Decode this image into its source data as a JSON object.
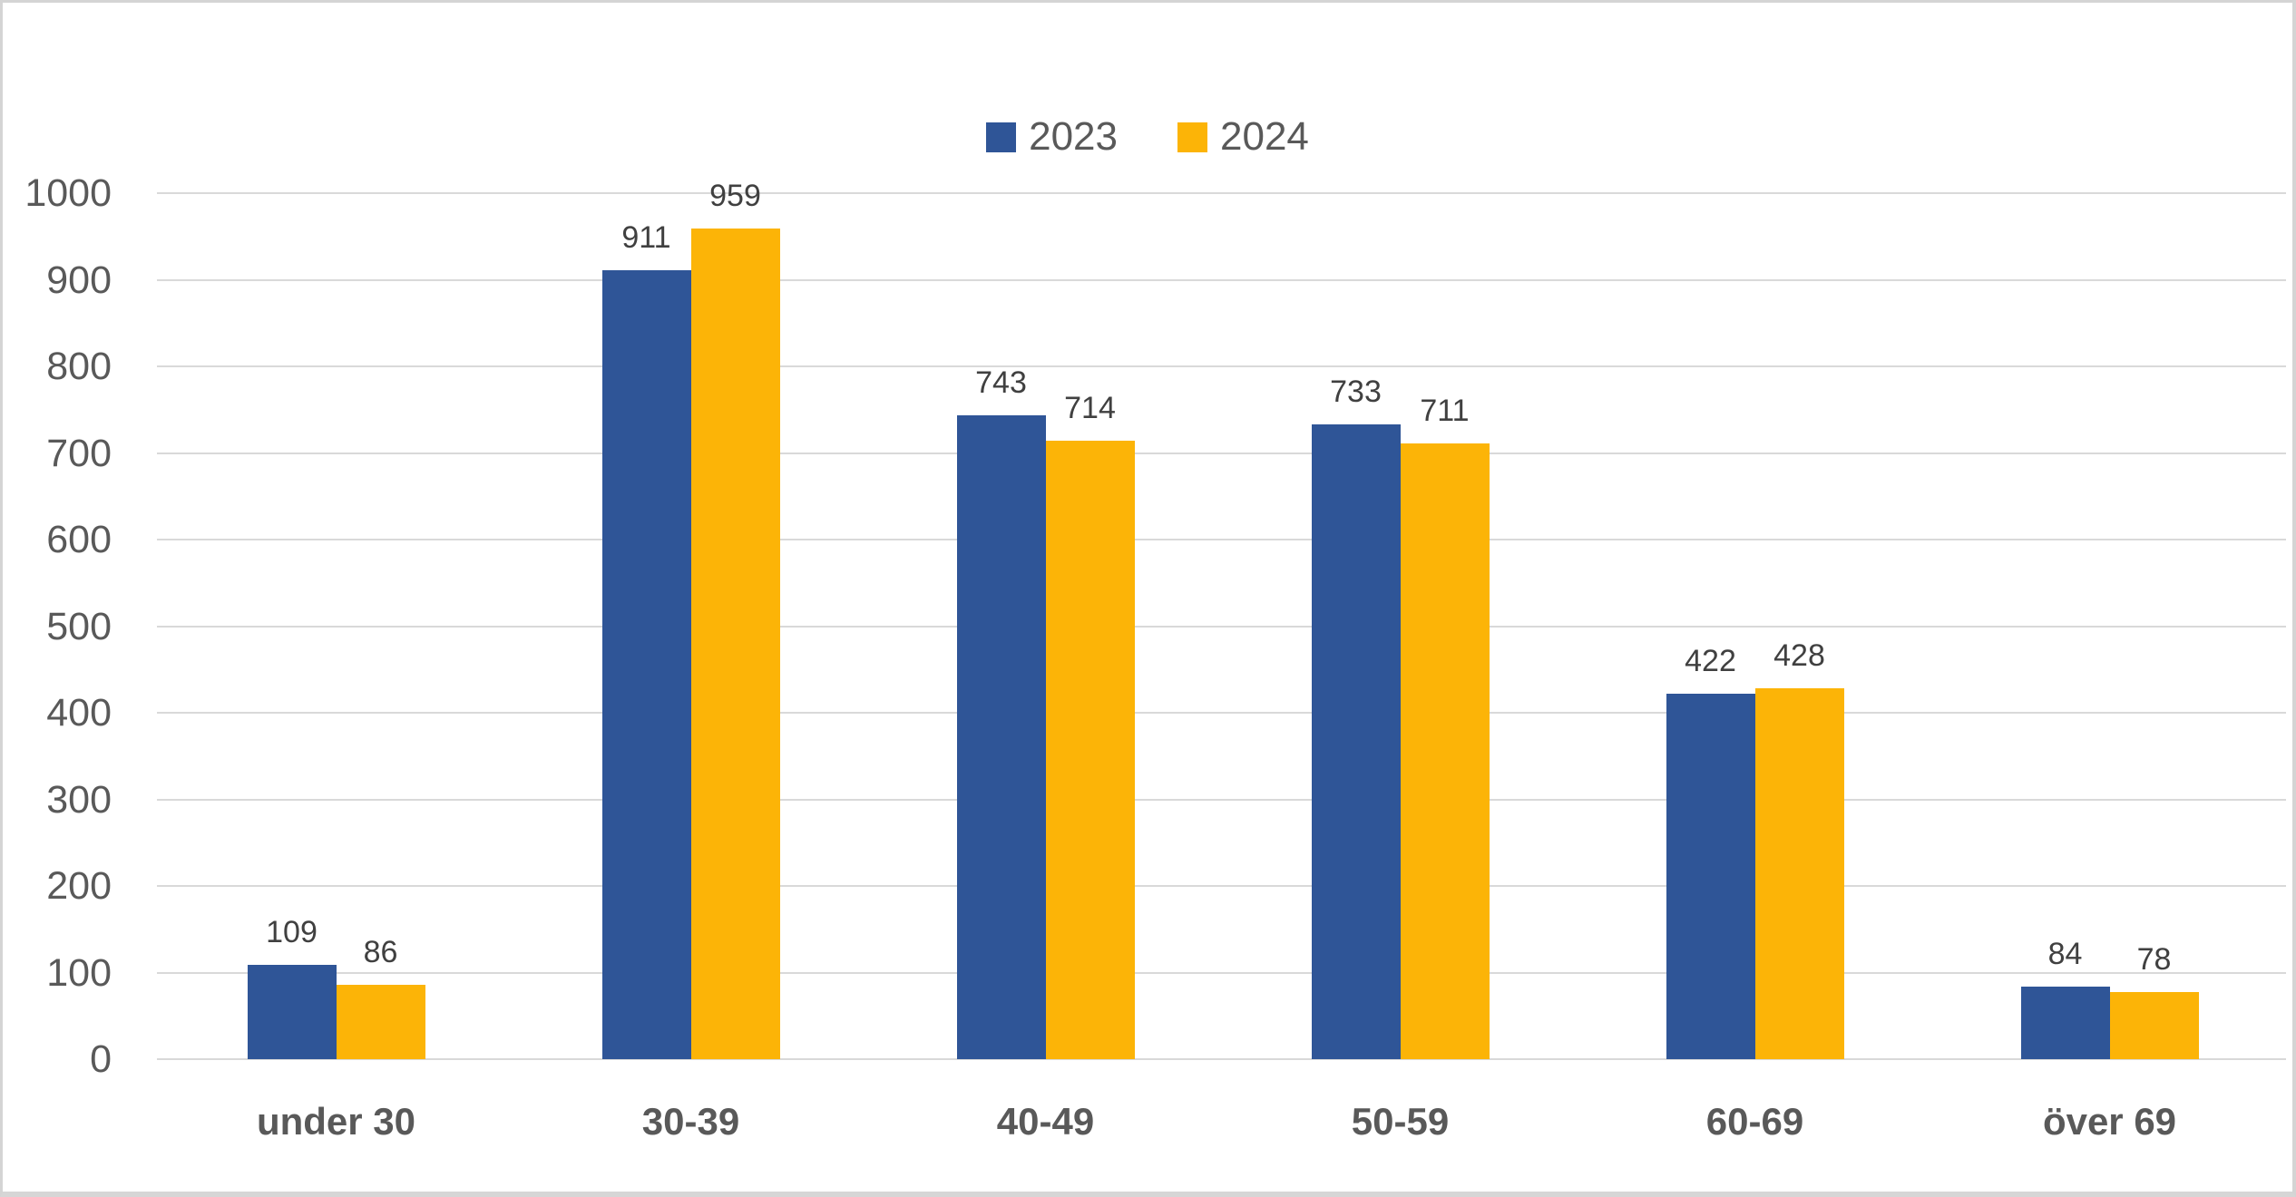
{
  "chart_data": {
    "type": "bar",
    "title": "",
    "xlabel": "",
    "ylabel": "",
    "categories": [
      "under 30",
      "30-39",
      "40-49",
      "50-59",
      "60-69",
      "över 69"
    ],
    "series": [
      {
        "name": "2023",
        "color": "#2F5597",
        "values": [
          109,
          911,
          743,
          733,
          422,
          84
        ]
      },
      {
        "name": "2024",
        "color": "#FCB407",
        "values": [
          86,
          959,
          714,
          711,
          428,
          78
        ]
      }
    ],
    "ylim": [
      0,
      1000
    ],
    "yticks": [
      0,
      100,
      200,
      300,
      400,
      500,
      600,
      700,
      800,
      900,
      1000
    ],
    "grid": true,
    "gridline_color": "#D9D9D9",
    "axis_text_color": "#595959",
    "data_label_color": "#404040",
    "data_labels": true,
    "legend_position": "top-center"
  }
}
